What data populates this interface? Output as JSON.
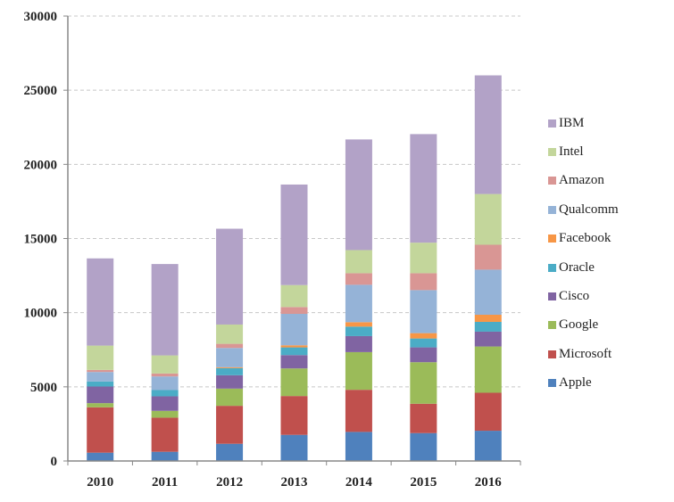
{
  "chart_data": {
    "type": "bar",
    "stacked": true,
    "title": "",
    "xlabel": "",
    "ylabel": "",
    "ylim": [
      0,
      30000
    ],
    "yticks": [
      0,
      5000,
      10000,
      15000,
      20000,
      25000,
      30000
    ],
    "grid": "horizontal-dashed",
    "legend_position": "right",
    "categories": [
      "2010",
      "2011",
      "2012",
      "2013",
      "2014",
      "2015",
      "2016"
    ],
    "series": [
      {
        "name": "Apple",
        "color": "#4F81BD",
        "values": [
          560,
          620,
          1160,
          1760,
          1960,
          1880,
          2040
        ]
      },
      {
        "name": "Microsoft",
        "color": "#C0504D",
        "values": [
          3060,
          2300,
          2560,
          2620,
          2840,
          1980,
          2560
        ]
      },
      {
        "name": "Google",
        "color": "#9BBB59",
        "values": [
          280,
          460,
          1160,
          1860,
          2540,
          2800,
          3120
        ]
      },
      {
        "name": "Cisco",
        "color": "#8064A2",
        "values": [
          1120,
          980,
          900,
          900,
          1080,
          1000,
          1000
        ]
      },
      {
        "name": "Oracle",
        "color": "#4BACC6",
        "values": [
          340,
          420,
          480,
          520,
          640,
          600,
          660
        ]
      },
      {
        "name": "Facebook",
        "color": "#F79646",
        "values": [
          0,
          0,
          60,
          140,
          300,
          360,
          480
        ]
      },
      {
        "name": "Qualcomm",
        "color": "#95B3D7",
        "values": [
          640,
          920,
          1300,
          2120,
          2520,
          2900,
          3040
        ]
      },
      {
        "name": "Amazon",
        "color": "#D99694",
        "values": [
          140,
          200,
          280,
          460,
          780,
          1140,
          1680
        ]
      },
      {
        "name": "Intel",
        "color": "#C3D69B",
        "values": [
          1640,
          1220,
          1300,
          1480,
          1560,
          2060,
          3420
        ]
      },
      {
        "name": "IBM",
        "color": "#B2A2C7",
        "values": [
          5880,
          6160,
          6460,
          6780,
          7460,
          7320,
          8000
        ]
      }
    ],
    "legend_order": [
      "IBM",
      "Intel",
      "Amazon",
      "Qualcomm",
      "Facebook",
      "Oracle",
      "Cisco",
      "Google",
      "Microsoft",
      "Apple"
    ]
  }
}
